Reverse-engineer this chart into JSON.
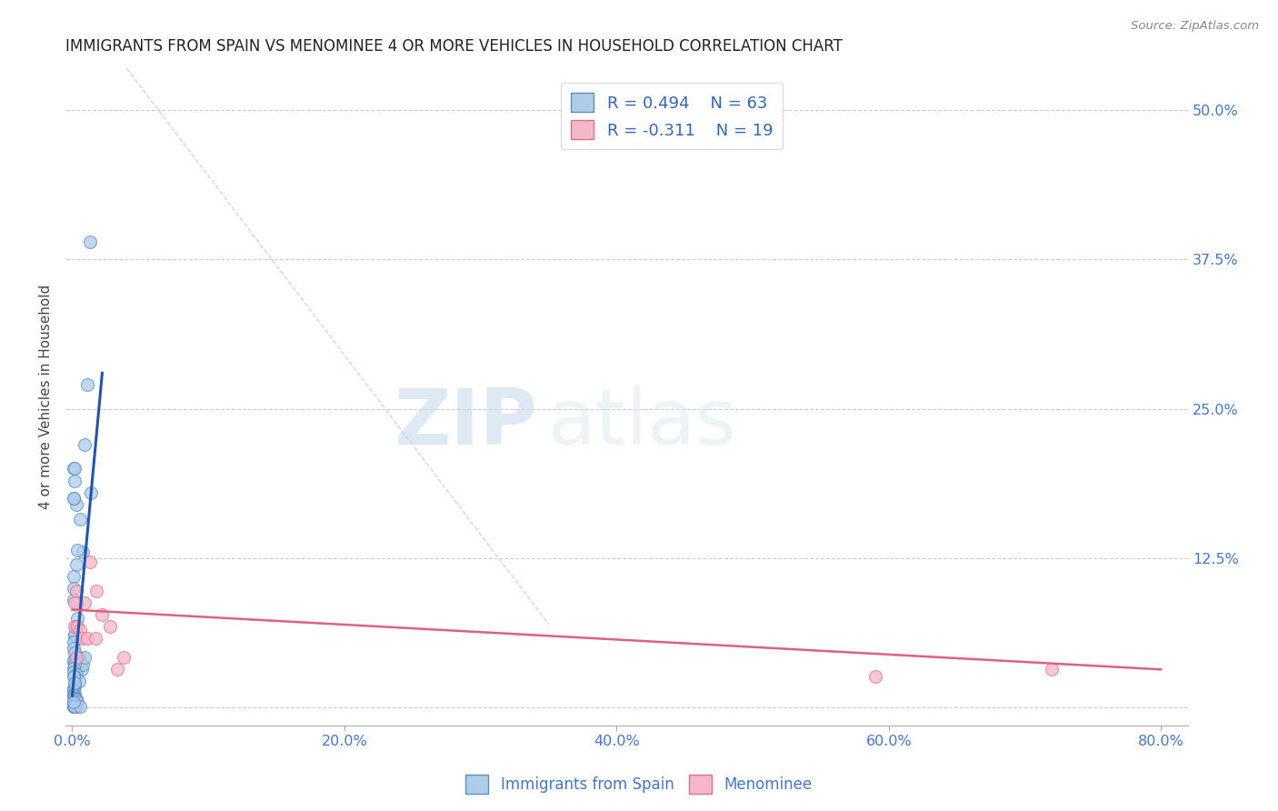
{
  "title": "IMMIGRANTS FROM SPAIN VS MENOMINEE 4 OR MORE VEHICLES IN HOUSEHOLD CORRELATION CHART",
  "source": "Source: ZipAtlas.com",
  "xlabel_ticks": [
    "0.0%",
    "20.0%",
    "40.0%",
    "60.0%",
    "80.0%"
  ],
  "xlabel_tick_vals": [
    0.0,
    0.2,
    0.4,
    0.6,
    0.8
  ],
  "ylabel": "4 or more Vehicles in Household",
  "ylabel_ticks_right": [
    "50.0%",
    "37.5%",
    "25.0%",
    "12.5%",
    ""
  ],
  "ylabel_tick_vals": [
    0.5,
    0.375,
    0.25,
    0.125,
    0.0
  ],
  "xlim": [
    -0.005,
    0.82
  ],
  "ylim": [
    -0.015,
    0.535
  ],
  "legend_blue_r": "R = 0.494",
  "legend_blue_n": "N = 63",
  "legend_pink_r": "R = -0.311",
  "legend_pink_n": "N = 19",
  "legend_labels": [
    "Immigrants from Spain",
    "Menominee"
  ],
  "blue_color": "#aecce8",
  "blue_edge_color": "#5b8ec4",
  "blue_line_color": "#2255aa",
  "pink_color": "#f5b8c8",
  "pink_edge_color": "#e07090",
  "pink_line_color": "#e06080",
  "dashed_line_color": "#b8d0e8",
  "watermark_zip": "ZIP",
  "watermark_atlas": "atlas",
  "blue_scatter_x": [
    0.008,
    0.014,
    0.011,
    0.009,
    0.001,
    0.002,
    0.003,
    0.001,
    0.002,
    0.001,
    0.003,
    0.001,
    0.001,
    0.001,
    0.002,
    0.004,
    0.003,
    0.004,
    0.005,
    0.006,
    0.007,
    0.008,
    0.009,
    0.013,
    0.002,
    0.001,
    0.001,
    0.002,
    0.001,
    0.001,
    0.002,
    0.001,
    0.001,
    0.003,
    0.002,
    0.005,
    0.002,
    0.002,
    0.001,
    0.001,
    0.001,
    0.002,
    0.001,
    0.001,
    0.001,
    0.002,
    0.003,
    0.003,
    0.004,
    0.001,
    0.001,
    0.001,
    0.001,
    0.001,
    0.001,
    0.003,
    0.002,
    0.006,
    0.006,
    0.004,
    0.001,
    0.002,
    0.001
  ],
  "blue_scatter_y": [
    0.13,
    0.18,
    0.27,
    0.22,
    0.2,
    0.19,
    0.17,
    0.175,
    0.2,
    0.175,
    0.12,
    0.11,
    0.1,
    0.09,
    0.06,
    0.075,
    0.068,
    0.058,
    0.042,
    0.038,
    0.032,
    0.036,
    0.042,
    0.39,
    0.062,
    0.055,
    0.05,
    0.046,
    0.04,
    0.038,
    0.036,
    0.033,
    0.03,
    0.028,
    0.026,
    0.022,
    0.02,
    0.018,
    0.016,
    0.015,
    0.014,
    0.012,
    0.011,
    0.01,
    0.009,
    0.008,
    0.007,
    0.006,
    0.005,
    0.004,
    0.003,
    0.002,
    0.001,
    0.001,
    0.001,
    0.001,
    0.001,
    0.001,
    0.158,
    0.132,
    0.026,
    0.021,
    0.005
  ],
  "pink_scatter_x": [
    0.003,
    0.004,
    0.009,
    0.013,
    0.018,
    0.022,
    0.002,
    0.003,
    0.59,
    0.72,
    0.002,
    0.004,
    0.006,
    0.007,
    0.028,
    0.038,
    0.011,
    0.017,
    0.033
  ],
  "pink_scatter_y": [
    0.098,
    0.088,
    0.088,
    0.122,
    0.098,
    0.078,
    0.068,
    0.042,
    0.026,
    0.032,
    0.088,
    0.068,
    0.065,
    0.058,
    0.068,
    0.042,
    0.058,
    0.058,
    0.032
  ],
  "blue_trend_x": [
    0.0,
    0.022
  ],
  "blue_trend_y": [
    0.01,
    0.28
  ],
  "pink_trend_x": [
    0.0,
    0.8
  ],
  "pink_trend_y": [
    0.082,
    0.032
  ],
  "dashed_trend_x": [
    0.04,
    0.35
  ],
  "dashed_trend_y": [
    0.535,
    0.07
  ]
}
